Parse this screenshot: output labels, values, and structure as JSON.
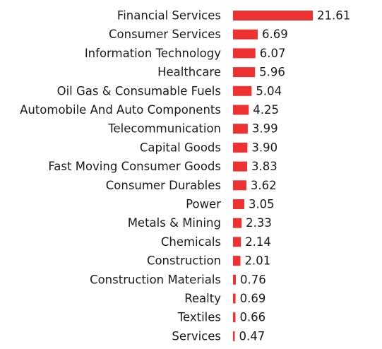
{
  "chart_data": {
    "type": "bar",
    "orientation": "horizontal",
    "color": "#ee3131",
    "categories": [
      "Financial Services",
      "Consumer Services",
      "Information Technology",
      "Healthcare",
      "Oil Gas & Consumable Fuels",
      "Automobile And Auto Components",
      "Telecommunication",
      "Capital Goods",
      "Fast Moving Consumer Goods",
      "Consumer Durables",
      "Power",
      "Metals & Mining",
      "Chemicals",
      "Construction",
      "Construction Materials",
      "Realty",
      "Textiles",
      "Services"
    ],
    "values": [
      21.61,
      6.69,
      6.07,
      5.96,
      5.04,
      4.25,
      3.99,
      3.9,
      3.83,
      3.62,
      3.05,
      2.33,
      2.14,
      2.01,
      0.76,
      0.69,
      0.66,
      0.47
    ],
    "value_labels": [
      "21.61",
      "6.69",
      "6.07",
      "5.96",
      "5.04",
      "4.25",
      "3.99",
      "3.90",
      "3.83",
      "3.62",
      "3.05",
      "2.33",
      "2.14",
      "2.01",
      "0.76",
      "0.69",
      "0.66",
      "0.47"
    ]
  }
}
